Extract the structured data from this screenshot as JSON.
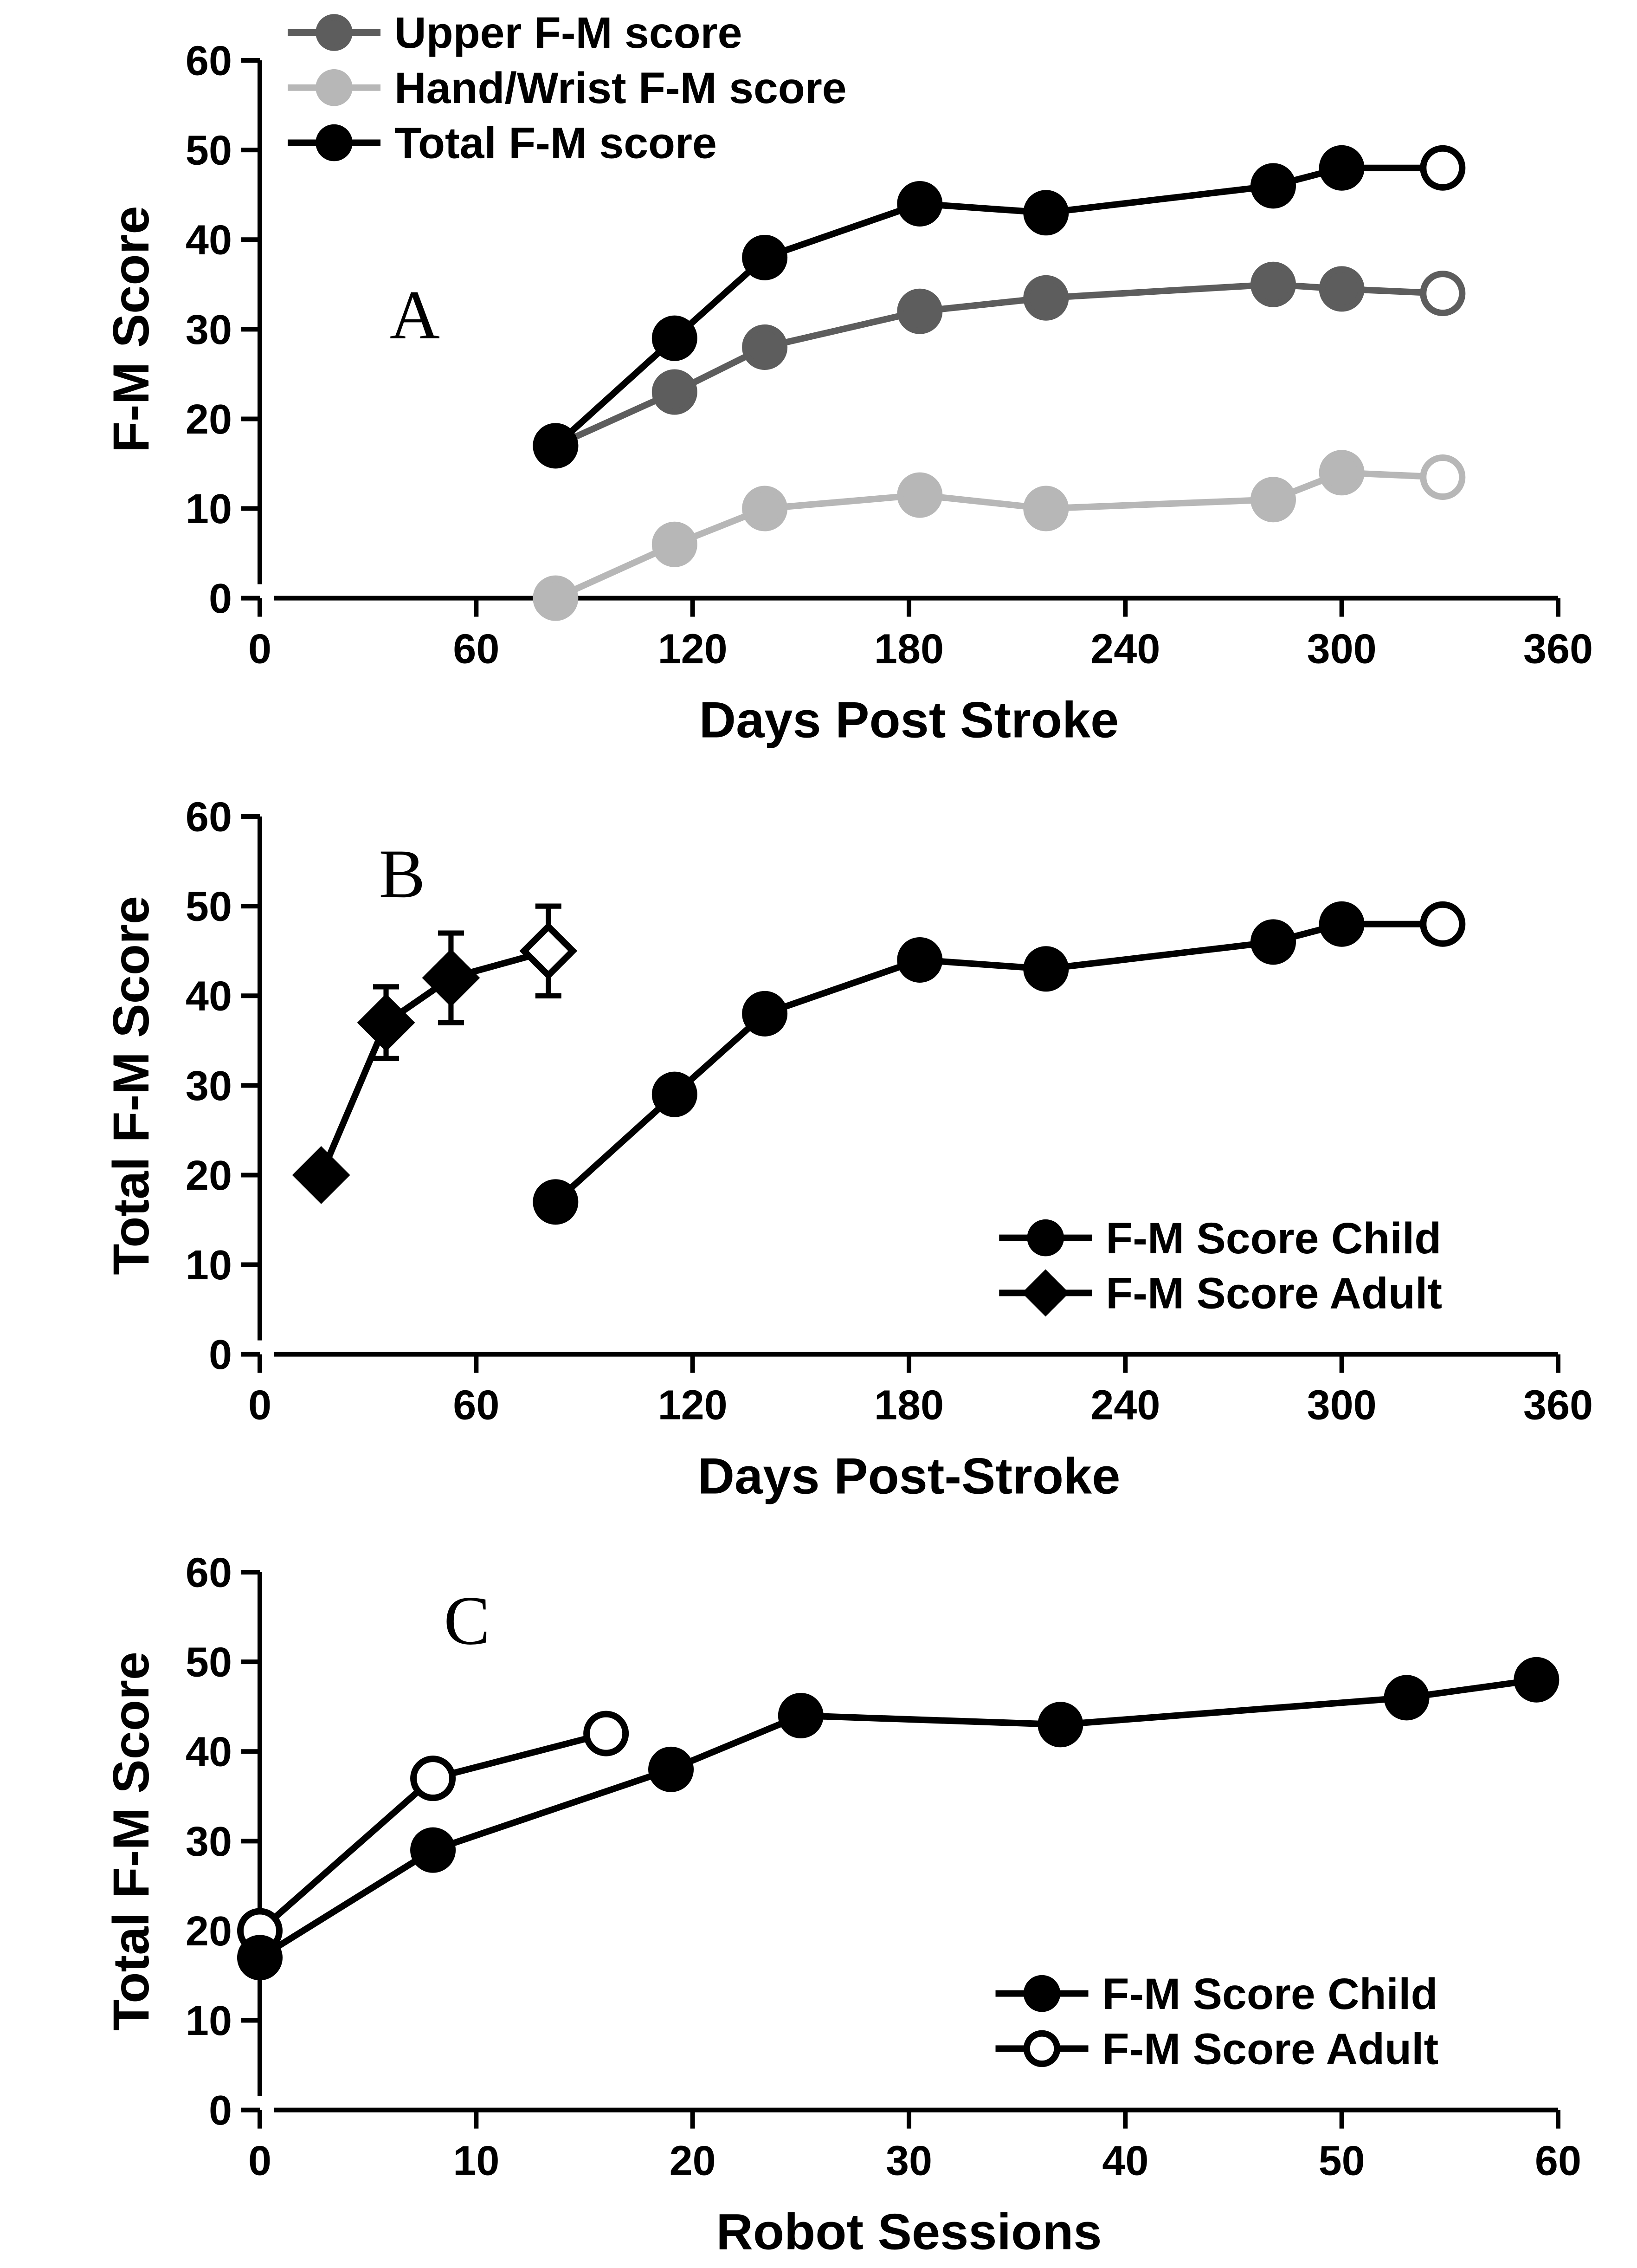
{
  "figure": {
    "background_color": "#ffffff",
    "axis_color": "#000000",
    "text_color": "#000000",
    "tick_font_size": 90,
    "label_font_size": 110,
    "legend_font_size": 95,
    "panel_letter_font_size": 150,
    "panel_letter_font_family": "Times New Roman, Times, serif",
    "axis_line_width": 10,
    "tick_length": 40,
    "series_line_width": 14,
    "marker_radius": 42
  },
  "panelA": {
    "letter": "A",
    "x_label": "Days Post Stroke",
    "y_label": "F-M Score",
    "xlim": [
      0,
      360
    ],
    "ylim": [
      0,
      60
    ],
    "x_ticks": [
      0,
      60,
      120,
      180,
      240,
      300,
      360
    ],
    "y_ticks": [
      0,
      10,
      20,
      30,
      40,
      50,
      60
    ],
    "legend": {
      "items": [
        {
          "label": "Upper F-M score",
          "color": "#5d5d5d",
          "marker": "circle",
          "fill": "filled"
        },
        {
          "label": "Hand/Wrist F-M score",
          "color": "#b7b7b7",
          "marker": "circle",
          "fill": "filled"
        },
        {
          "label": "Total F-M score",
          "color": "#000000",
          "marker": "circle",
          "fill": "filled"
        }
      ]
    },
    "series": [
      {
        "name": "Upper F-M score",
        "color": "#5d5d5d",
        "marker": "circle",
        "line": true,
        "points": [
          {
            "x": 82,
            "y": 17,
            "fill": "filled"
          },
          {
            "x": 115,
            "y": 23,
            "fill": "filled"
          },
          {
            "x": 140,
            "y": 28,
            "fill": "filled"
          },
          {
            "x": 183,
            "y": 32,
            "fill": "filled"
          },
          {
            "x": 218,
            "y": 33.5,
            "fill": "filled"
          },
          {
            "x": 281,
            "y": 35,
            "fill": "filled"
          },
          {
            "x": 300,
            "y": 34.5,
            "fill": "filled"
          },
          {
            "x": 328,
            "y": 34,
            "fill": "open"
          }
        ]
      },
      {
        "name": "Hand/Wrist F-M score",
        "color": "#b7b7b7",
        "marker": "circle",
        "line": true,
        "points": [
          {
            "x": 82,
            "y": 0,
            "fill": "filled"
          },
          {
            "x": 115,
            "y": 6,
            "fill": "filled"
          },
          {
            "x": 140,
            "y": 10,
            "fill": "filled"
          },
          {
            "x": 183,
            "y": 11.5,
            "fill": "filled"
          },
          {
            "x": 218,
            "y": 10,
            "fill": "filled"
          },
          {
            "x": 281,
            "y": 11,
            "fill": "filled"
          },
          {
            "x": 300,
            "y": 14,
            "fill": "filled"
          },
          {
            "x": 328,
            "y": 13.5,
            "fill": "open"
          }
        ]
      },
      {
        "name": "Total F-M score",
        "color": "#000000",
        "marker": "circle",
        "line": true,
        "points": [
          {
            "x": 82,
            "y": 17,
            "fill": "filled"
          },
          {
            "x": 115,
            "y": 29,
            "fill": "filled"
          },
          {
            "x": 140,
            "y": 38,
            "fill": "filled"
          },
          {
            "x": 183,
            "y": 44,
            "fill": "filled"
          },
          {
            "x": 218,
            "y": 43,
            "fill": "filled"
          },
          {
            "x": 281,
            "y": 46,
            "fill": "filled"
          },
          {
            "x": 300,
            "y": 48,
            "fill": "filled"
          },
          {
            "x": 328,
            "y": 48,
            "fill": "open"
          }
        ]
      }
    ]
  },
  "panelB": {
    "letter": "B",
    "x_label": "Days Post-Stroke",
    "y_label": "Total F-M Score",
    "xlim": [
      0,
      360
    ],
    "ylim": [
      0,
      60
    ],
    "x_ticks": [
      0,
      60,
      120,
      180,
      240,
      300,
      360
    ],
    "y_ticks": [
      0,
      10,
      20,
      30,
      40,
      50,
      60
    ],
    "legend": {
      "items": [
        {
          "label": "F-M Score Child",
          "color": "#000000",
          "marker": "circle",
          "fill": "filled"
        },
        {
          "label": "F-M Score Adult",
          "color": "#000000",
          "marker": "diamond",
          "fill": "filled"
        }
      ]
    },
    "series": [
      {
        "name": "F-M Score Adult",
        "color": "#000000",
        "marker": "diamond",
        "line": true,
        "points": [
          {
            "x": 17,
            "y": 20,
            "fill": "filled",
            "err": 1.5
          },
          {
            "x": 35,
            "y": 37,
            "fill": "filled",
            "err": 4
          },
          {
            "x": 53,
            "y": 42,
            "fill": "filled",
            "err": 5
          },
          {
            "x": 80,
            "y": 45,
            "fill": "open",
            "err": 5
          }
        ]
      },
      {
        "name": "F-M Score Child",
        "color": "#000000",
        "marker": "circle",
        "line": true,
        "points": [
          {
            "x": 82,
            "y": 17,
            "fill": "filled"
          },
          {
            "x": 115,
            "y": 29,
            "fill": "filled"
          },
          {
            "x": 140,
            "y": 38,
            "fill": "filled"
          },
          {
            "x": 183,
            "y": 44,
            "fill": "filled"
          },
          {
            "x": 218,
            "y": 43,
            "fill": "filled"
          },
          {
            "x": 281,
            "y": 46,
            "fill": "filled"
          },
          {
            "x": 300,
            "y": 48,
            "fill": "filled"
          },
          {
            "x": 328,
            "y": 48,
            "fill": "open"
          }
        ]
      }
    ]
  },
  "panelC": {
    "letter": "C",
    "x_label": "Robot Sessions",
    "y_label": "Total F-M Score",
    "xlim": [
      0,
      60
    ],
    "ylim": [
      0,
      60
    ],
    "x_ticks": [
      0,
      10,
      20,
      30,
      40,
      50,
      60
    ],
    "y_ticks": [
      0,
      10,
      20,
      30,
      40,
      50,
      60
    ],
    "legend": {
      "items": [
        {
          "label": "F-M Score Child",
          "color": "#000000",
          "marker": "circle",
          "fill": "filled"
        },
        {
          "label": "F-M Score Adult",
          "color": "#000000",
          "marker": "circle",
          "fill": "open"
        }
      ]
    },
    "series": [
      {
        "name": "F-M Score Adult",
        "color": "#000000",
        "marker": "circle",
        "line": true,
        "points": [
          {
            "x": 0,
            "y": 20,
            "fill": "open"
          },
          {
            "x": 8,
            "y": 37,
            "fill": "open"
          },
          {
            "x": 16,
            "y": 42,
            "fill": "open"
          }
        ]
      },
      {
        "name": "F-M Score Child",
        "color": "#000000",
        "marker": "circle",
        "line": true,
        "points": [
          {
            "x": 0,
            "y": 17,
            "fill": "filled"
          },
          {
            "x": 8,
            "y": 29,
            "fill": "filled"
          },
          {
            "x": 19,
            "y": 38,
            "fill": "filled"
          },
          {
            "x": 25,
            "y": 44,
            "fill": "filled"
          },
          {
            "x": 37,
            "y": 43,
            "fill": "filled"
          },
          {
            "x": 53,
            "y": 46,
            "fill": "filled"
          },
          {
            "x": 59,
            "y": 48,
            "fill": "filled"
          }
        ]
      }
    ]
  }
}
